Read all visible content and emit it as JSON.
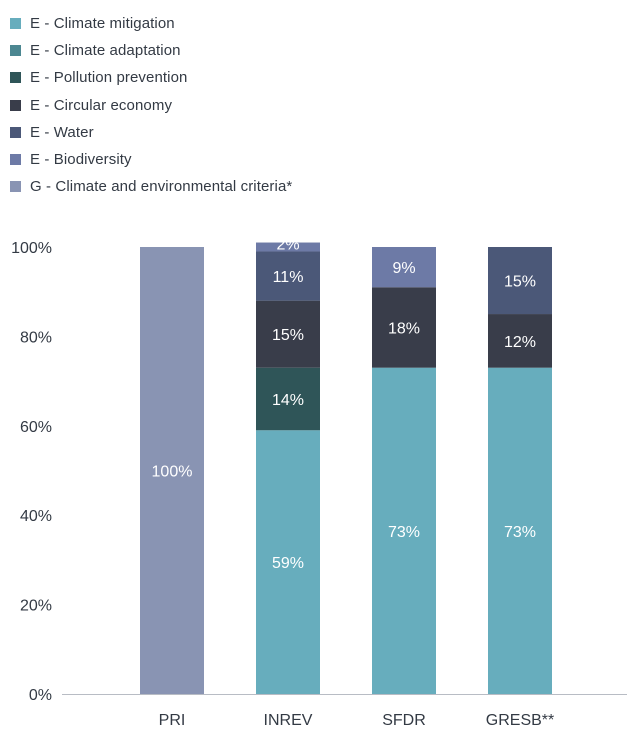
{
  "chart_data": {
    "type": "bar",
    "stacked": true,
    "categories": [
      "PRI",
      "INREV",
      "SFDR",
      "GRESB**"
    ],
    "ylim": [
      0,
      100
    ],
    "y_ticks": [
      "0%",
      "20%",
      "40%",
      "60%",
      "80%",
      "100%"
    ],
    "grid": false,
    "legend_position": "top-left",
    "series": [
      {
        "name": "E - Climate mitigation",
        "color": "#67adbd",
        "values": [
          0,
          59,
          73,
          73
        ]
      },
      {
        "name": "E - Climate adaptation",
        "color": "#4c8791",
        "values": [
          0,
          0,
          0,
          0
        ]
      },
      {
        "name": "E - Pollution prevention",
        "color": "#2f5558",
        "values": [
          0,
          14,
          0,
          0
        ]
      },
      {
        "name": "E - Circular economy",
        "color": "#393d4a",
        "values": [
          0,
          15,
          18,
          12
        ]
      },
      {
        "name": "E - Water",
        "color": "#4b5878",
        "values": [
          0,
          11,
          0,
          15
        ]
      },
      {
        "name": "E - Biodiversity",
        "color": "#6d7aa6",
        "values": [
          0,
          2,
          9,
          0
        ]
      },
      {
        "name": "G - Climate and environmental criteria*",
        "color": "#8994b3",
        "values": [
          100,
          0,
          0,
          0
        ]
      }
    ],
    "data_labels": [
      [
        "",
        "59%",
        "73%",
        "73%"
      ],
      [
        "",
        "",
        "",
        ""
      ],
      [
        "",
        "14%",
        "",
        ""
      ],
      [
        "",
        "15%",
        "18%",
        "12%"
      ],
      [
        "",
        "11%",
        "",
        "15%"
      ],
      [
        "",
        "2%",
        "9%",
        ""
      ],
      [
        "100%",
        "",
        "",
        ""
      ]
    ]
  }
}
